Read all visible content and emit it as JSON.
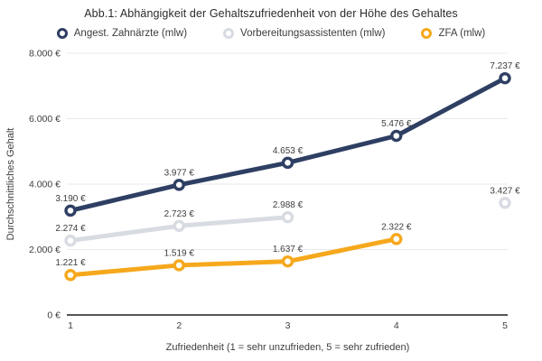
{
  "title": "Abb.1: Abhängigkeit der Gehaltszufriedenheit von der Höhe des Gehaltes",
  "chart_data": {
    "type": "line",
    "title": "Abb.1: Abhängigkeit der Gehaltszufriedenheit von der Höhe des Gehaltes",
    "xlabel": "Zufriedenheit (1 = sehr unzufrieden, 5 = sehr zufrieden)",
    "ylabel": "Durchschnittliches Gehalt",
    "x": [
      1,
      2,
      3,
      4,
      5
    ],
    "xtick_labels": [
      "1",
      "2",
      "3",
      "4",
      "5"
    ],
    "xlim": [
      1,
      5
    ],
    "ylim": [
      0,
      8000
    ],
    "yticks": [
      0,
      2000,
      4000,
      6000,
      8000
    ],
    "ytick_labels": [
      "0 €",
      "2.000 €",
      "4.000 €",
      "6.000 €",
      "8.000 €"
    ],
    "grid": "horizontal",
    "legend_position": "top",
    "series": [
      {
        "name": "Angest. Zahnärzte (mlw)",
        "color": "#2E3F63",
        "values": [
          3190,
          3977,
          4653,
          5476,
          7237
        ],
        "labels": [
          "3.190 €",
          "3.977 €",
          "4.653 €",
          "5.476 €",
          "7.237 €"
        ]
      },
      {
        "name": "Vorbereitungsassistenten (mlw)",
        "color": "#D8DCE2",
        "values": [
          2274,
          2723,
          2988,
          null,
          3427
        ],
        "labels": [
          "2.274 €",
          "2.723 €",
          "2.988 €",
          null,
          "3.427 €"
        ]
      },
      {
        "name": "ZFA (mlw)",
        "color": "#F6A81C",
        "values": [
          1221,
          1519,
          1637,
          2322,
          null
        ],
        "labels": [
          "1.221 €",
          "1.519 €",
          "1.637 €",
          "2.322 €",
          null
        ]
      }
    ],
    "colors": {
      "axis": "#3c3c3c",
      "gridline": "#eaeaea",
      "tick_text": "#3d3d3d",
      "value_label_text": "#3d3d3d"
    }
  }
}
